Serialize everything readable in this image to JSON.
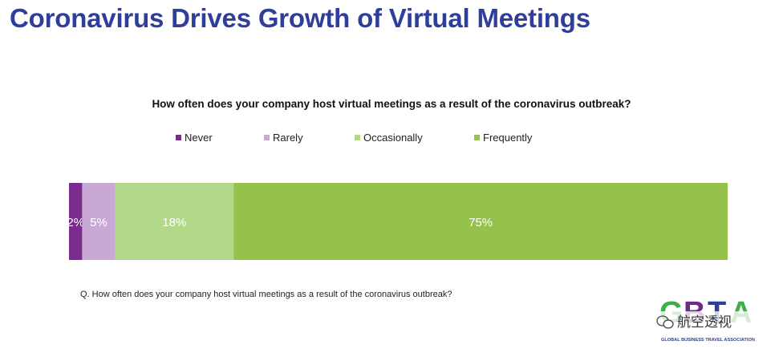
{
  "slide": {
    "title": "Coronavirus Drives Growth of Virtual Meetings",
    "footnote": "Q. How often does your company host virtual meetings as a result of the coronavirus outbreak?"
  },
  "chart_data": {
    "type": "bar",
    "orientation": "horizontal-stacked-100",
    "title": "How often does your company host virtual meetings as a result of the coronavirus outbreak?",
    "legend_position": "top",
    "grid": false,
    "series": [
      {
        "name": "Never",
        "values": [
          2
        ],
        "label": "2%",
        "color": "#7b2a8e"
      },
      {
        "name": "Rarely",
        "values": [
          5
        ],
        "label": "5%",
        "color": "#c8a9d6"
      },
      {
        "name": "Occasionally",
        "values": [
          18
        ],
        "label": "18%",
        "color": "#b4d88a"
      },
      {
        "name": "Frequently",
        "values": [
          75
        ],
        "label": "75%",
        "color": "#94c24a"
      }
    ]
  },
  "logo": {
    "letters": "GBTA",
    "name": "GLOBAL BUSINESS TRAVEL ASSOCIATION",
    "watermark": "航空透视"
  }
}
